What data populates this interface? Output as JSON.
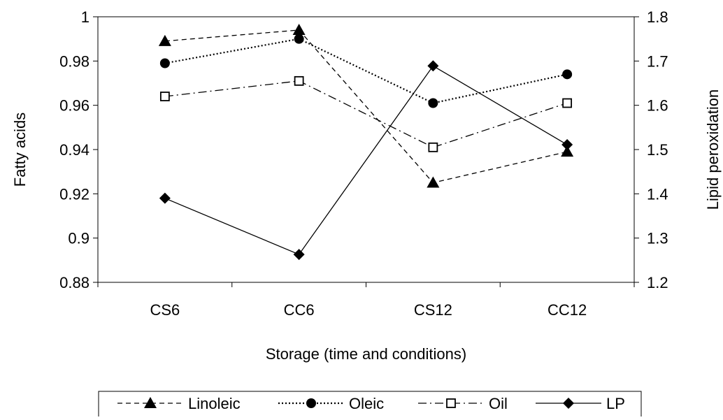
{
  "chart_data": {
    "type": "line",
    "title": "",
    "xlabel": "Storage (time and conditions)",
    "ylabel_left": "Fatty acids",
    "ylabel_right": "Lipid peroxidation",
    "categories": [
      "CS6",
      "CC6",
      "CS12",
      "CC12"
    ],
    "ylim_left": [
      0.88,
      1.0
    ],
    "yticks_left": [
      "0.88",
      "0.9",
      "0.92",
      "0.94",
      "0.96",
      "0.98",
      "1"
    ],
    "ylim_right": [
      1.2,
      1.8
    ],
    "yticks_right": [
      "1.2",
      "1.3",
      "1.4",
      "1.5",
      "1.6",
      "1.7",
      "1.8"
    ],
    "grid": false,
    "legend_position": "bottom",
    "series": [
      {
        "name": "Linoleic",
        "axis": "left",
        "values": [
          0.989,
          0.994,
          0.925,
          0.939
        ],
        "line_style": "dashed",
        "marker": "triangle",
        "color": "#000000"
      },
      {
        "name": "Oleic",
        "axis": "left",
        "values": [
          0.979,
          0.99,
          0.961,
          0.974
        ],
        "line_style": "dotted",
        "marker": "circle",
        "color": "#000000"
      },
      {
        "name": "Oil",
        "axis": "left",
        "values": [
          0.964,
          0.971,
          0.941,
          0.961
        ],
        "line_style": "dash-dot",
        "marker": "open-square",
        "color": "#000000"
      },
      {
        "name": "LP",
        "axis": "right",
        "values": [
          1.39,
          1.263,
          1.689,
          1.511
        ],
        "line_style": "solid",
        "marker": "diamond",
        "color": "#000000"
      }
    ]
  }
}
